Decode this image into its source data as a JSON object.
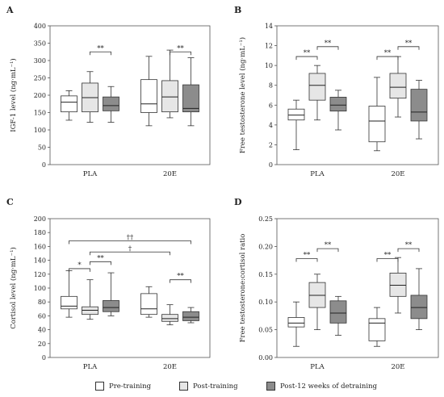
{
  "groups": [
    "PLA",
    "20E"
  ],
  "legend": [
    {
      "label": "Pre-training",
      "color": "#ffffff"
    },
    {
      "label": "Post-training",
      "color": "#e6e6e6"
    },
    {
      "label": "Post-12 weeks of detraining",
      "color": "#8c8c8c"
    }
  ],
  "chart_data": [
    {
      "type": "box",
      "panel": "A",
      "ylabel": "IGF-1 level (ng·mL⁻¹)",
      "ylim": [
        0,
        400
      ],
      "yticks": [
        0,
        50,
        100,
        150,
        200,
        250,
        300,
        350,
        400
      ],
      "series": [
        {
          "name": "Pre-training",
          "boxes": [
            {
              "group": "PLA",
              "min": 128,
              "q1": 152,
              "median": 180,
              "q3": 198,
              "max": 213
            },
            {
              "group": "20E",
              "min": 112,
              "q1": 150,
              "median": 175,
              "q3": 245,
              "max": 312
            }
          ]
        },
        {
          "name": "Post-training",
          "boxes": [
            {
              "group": "PLA",
              "min": 122,
              "q1": 152,
              "median": 193,
              "q3": 235,
              "max": 268
            },
            {
              "group": "20E",
              "min": 135,
              "q1": 152,
              "median": 195,
              "q3": 242,
              "max": 330
            }
          ]
        },
        {
          "name": "Post-12 weeks of detraining",
          "boxes": [
            {
              "group": "PLA",
              "min": 122,
              "q1": 155,
              "median": 170,
              "q3": 195,
              "max": 225
            },
            {
              "group": "20E",
              "min": 112,
              "q1": 152,
              "median": 162,
              "q3": 230,
              "max": 308
            }
          ]
        }
      ],
      "annotations": [
        {
          "group": "PLA",
          "from": 1,
          "to": 2,
          "text": "**",
          "y": 325
        },
        {
          "group": "20E",
          "from": 1,
          "to": 2,
          "text": "**",
          "y": 325
        }
      ]
    },
    {
      "type": "box",
      "panel": "B",
      "ylabel": "Free testosterone level (ng·mL⁻¹)",
      "ylim": [
        0,
        14
      ],
      "yticks": [
        0,
        2,
        4,
        6,
        8,
        10,
        12,
        14
      ],
      "series": [
        {
          "name": "Pre-training",
          "boxes": [
            {
              "group": "PLA",
              "min": 1.5,
              "q1": 4.5,
              "median": 5.0,
              "q3": 5.6,
              "max": 6.5
            },
            {
              "group": "20E",
              "min": 1.4,
              "q1": 2.3,
              "median": 4.4,
              "q3": 5.9,
              "max": 8.8
            }
          ]
        },
        {
          "name": "Post-training",
          "boxes": [
            {
              "group": "PLA",
              "min": 4.5,
              "q1": 6.5,
              "median": 8.0,
              "q3": 9.2,
              "max": 10.0
            },
            {
              "group": "20E",
              "min": 4.8,
              "q1": 6.7,
              "median": 7.8,
              "q3": 9.2,
              "max": 10.9
            }
          ]
        },
        {
          "name": "Post-12 weeks of detraining",
          "boxes": [
            {
              "group": "PLA",
              "min": 3.5,
              "q1": 5.4,
              "median": 6.0,
              "q3": 6.8,
              "max": 7.5
            },
            {
              "group": "20E",
              "min": 2.6,
              "q1": 4.4,
              "median": 5.3,
              "q3": 7.6,
              "max": 8.5
            }
          ]
        }
      ],
      "annotations": [
        {
          "group": "PLA",
          "from": 0,
          "to": 1,
          "text": "**",
          "y": 10.9
        },
        {
          "group": "PLA",
          "from": 1,
          "to": 2,
          "text": "**",
          "y": 11.9
        },
        {
          "group": "20E",
          "from": 0,
          "to": 1,
          "text": "**",
          "y": 10.9
        },
        {
          "group": "20E",
          "from": 1,
          "to": 2,
          "text": "**",
          "y": 11.9
        }
      ]
    },
    {
      "type": "box",
      "panel": "C",
      "ylabel": "Cortisol level (ng·mL⁻¹)",
      "ylim": [
        0,
        200
      ],
      "yticks": [
        0,
        20,
        40,
        60,
        80,
        100,
        120,
        140,
        160,
        180,
        200
      ],
      "series": [
        {
          "name": "Pre-training",
          "boxes": [
            {
              "group": "PLA",
              "min": 58,
              "q1": 70,
              "median": 74,
              "q3": 88,
              "max": 125
            },
            {
              "group": "20E",
              "min": 58,
              "q1": 62,
              "median": 70,
              "q3": 92,
              "max": 102
            }
          ]
        },
        {
          "name": "Post-training",
          "boxes": [
            {
              "group": "PLA",
              "min": 55,
              "q1": 62,
              "median": 68,
              "q3": 73,
              "max": 112
            },
            {
              "group": "20E",
              "min": 47,
              "q1": 52,
              "median": 56,
              "q3": 62,
              "max": 76
            }
          ]
        },
        {
          "name": "Post-12 weeks of detraining",
          "boxes": [
            {
              "group": "PLA",
              "min": 60,
              "q1": 66,
              "median": 72,
              "q3": 82,
              "max": 122
            },
            {
              "group": "20E",
              "min": 50,
              "q1": 53,
              "median": 58,
              "q3": 66,
              "max": 72
            }
          ]
        }
      ],
      "annotations": [
        {
          "group": "PLA",
          "from": 0,
          "to": 1,
          "text": "*",
          "y": 128
        },
        {
          "group": "PLA",
          "from": 1,
          "to": 2,
          "text": "**",
          "y": 138
        },
        {
          "group": "20E",
          "from": 1,
          "to": 2,
          "text": "**",
          "y": 112
        },
        {
          "crossGroup": true,
          "fromGroup": "PLA",
          "from": 1,
          "toGroup": "20E",
          "to": 1,
          "text": "†",
          "y": 152
        },
        {
          "crossGroup": true,
          "fromGroup": "PLA",
          "from": 0,
          "toGroup": "20E",
          "to": 2,
          "text": "††",
          "y": 168
        }
      ]
    },
    {
      "type": "box",
      "panel": "D",
      "ylabel": "Free testosterone:cortisol ratio",
      "ylim": [
        0,
        0.25
      ],
      "yticks": [
        0,
        0.05,
        0.1,
        0.15,
        0.2,
        0.25
      ],
      "series": [
        {
          "name": "Pre-training",
          "boxes": [
            {
              "group": "PLA",
              "min": 0.02,
              "q1": 0.055,
              "median": 0.062,
              "q3": 0.072,
              "max": 0.1
            },
            {
              "group": "20E",
              "min": 0.02,
              "q1": 0.03,
              "median": 0.062,
              "q3": 0.07,
              "max": 0.09
            }
          ]
        },
        {
          "name": "Post-training",
          "boxes": [
            {
              "group": "PLA",
              "min": 0.05,
              "q1": 0.09,
              "median": 0.112,
              "q3": 0.135,
              "max": 0.15
            },
            {
              "group": "20E",
              "min": 0.08,
              "q1": 0.11,
              "median": 0.13,
              "q3": 0.152,
              "max": 0.18
            }
          ]
        },
        {
          "name": "Post-12 weeks of detraining",
          "boxes": [
            {
              "group": "PLA",
              "min": 0.04,
              "q1": 0.062,
              "median": 0.08,
              "q3": 0.102,
              "max": 0.11
            },
            {
              "group": "20E",
              "min": 0.05,
              "q1": 0.07,
              "median": 0.09,
              "q3": 0.112,
              "max": 0.16
            }
          ]
        }
      ],
      "annotations": [
        {
          "group": "PLA",
          "from": 0,
          "to": 1,
          "text": "**",
          "y": 0.178
        },
        {
          "group": "PLA",
          "from": 1,
          "to": 2,
          "text": "**",
          "y": 0.196
        },
        {
          "group": "20E",
          "from": 0,
          "to": 1,
          "text": "**",
          "y": 0.178
        },
        {
          "group": "20E",
          "from": 1,
          "to": 2,
          "text": "**",
          "y": 0.196
        }
      ]
    }
  ]
}
